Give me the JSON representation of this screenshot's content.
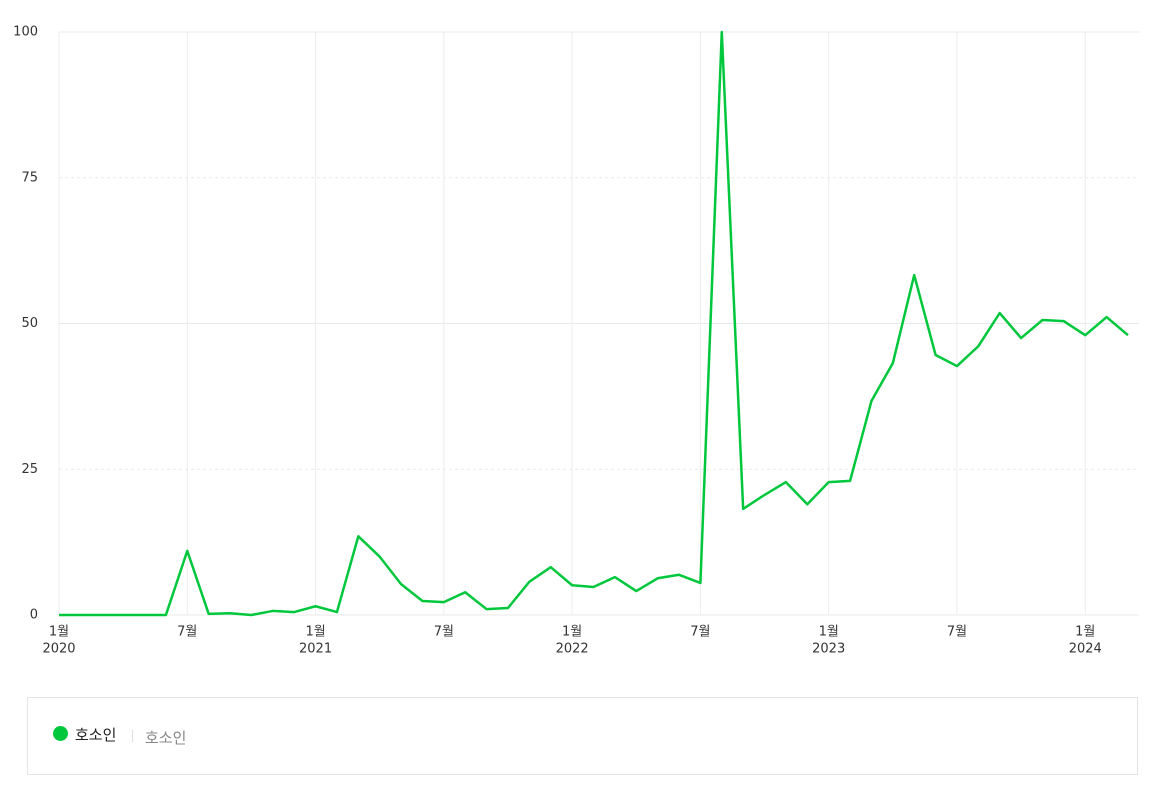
{
  "chart_data": {
    "type": "line",
    "categories": [
      "1월",
      null,
      null,
      null,
      null,
      null,
      "7월",
      null,
      null,
      null,
      null,
      null,
      "1월",
      null,
      null,
      null,
      null,
      null,
      "7월",
      null,
      null,
      null,
      null,
      null,
      "1월",
      null,
      null,
      null,
      null,
      null,
      "7월",
      null,
      null,
      null,
      null,
      null,
      "1월",
      null,
      null,
      null,
      null,
      null,
      "7월",
      null,
      null,
      null,
      null,
      null,
      "1월",
      null,
      null
    ],
    "category_years": [
      "2020",
      null,
      null,
      null,
      null,
      null,
      null,
      null,
      null,
      null,
      null,
      null,
      "2021",
      null,
      null,
      null,
      null,
      null,
      null,
      null,
      null,
      null,
      null,
      null,
      "2022",
      null,
      null,
      null,
      null,
      null,
      null,
      null,
      null,
      null,
      null,
      null,
      "2023",
      null,
      null,
      null,
      null,
      null,
      null,
      null,
      null,
      null,
      null,
      null,
      "2024",
      null,
      null
    ],
    "series": [
      {
        "name": "호소인",
        "color": "#00c73c",
        "values": [
          0,
          0,
          0,
          0,
          0,
          0,
          11,
          0.2,
          0.3,
          0,
          0.7,
          0.5,
          1.5,
          0.5,
          13.5,
          10,
          5.3,
          2.4,
          2.2,
          3.9,
          1,
          1.2,
          5.7,
          8.2,
          5.1,
          4.8,
          6.5,
          4.1,
          6.3,
          6.9,
          5.5,
          100,
          18.2,
          20.6,
          22.8,
          19,
          22.8,
          23,
          36.7,
          43.2,
          58.3,
          44.6,
          42.7,
          46.1,
          51.8,
          47.5,
          50.6,
          50.4,
          48,
          51.1,
          48
        ]
      }
    ],
    "legend_subtitle": "호소인",
    "ylim": [
      0,
      100
    ],
    "yticks": [
      0,
      25,
      50,
      75,
      100
    ],
    "grid": true
  }
}
